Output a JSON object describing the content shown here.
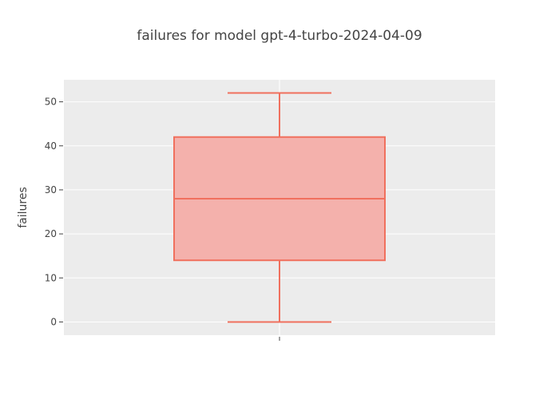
{
  "chart_data": {
    "type": "box",
    "title": "failures for model gpt-4-turbo-2024-04-09",
    "xlabel": "",
    "ylabel": "failures",
    "ylim": [
      -3,
      55
    ],
    "yticks": [
      0,
      10,
      20,
      30,
      40,
      50
    ],
    "grid": true,
    "legend": "none",
    "box": {
      "min": 0,
      "q1": 14,
      "median": 28,
      "q3": 42,
      "max": 52
    },
    "colors": {
      "line": "#f0705e",
      "fill": "#f4b1ac",
      "plot_background": "#ececec",
      "grid": "#ffffff",
      "text": "#444444"
    }
  }
}
